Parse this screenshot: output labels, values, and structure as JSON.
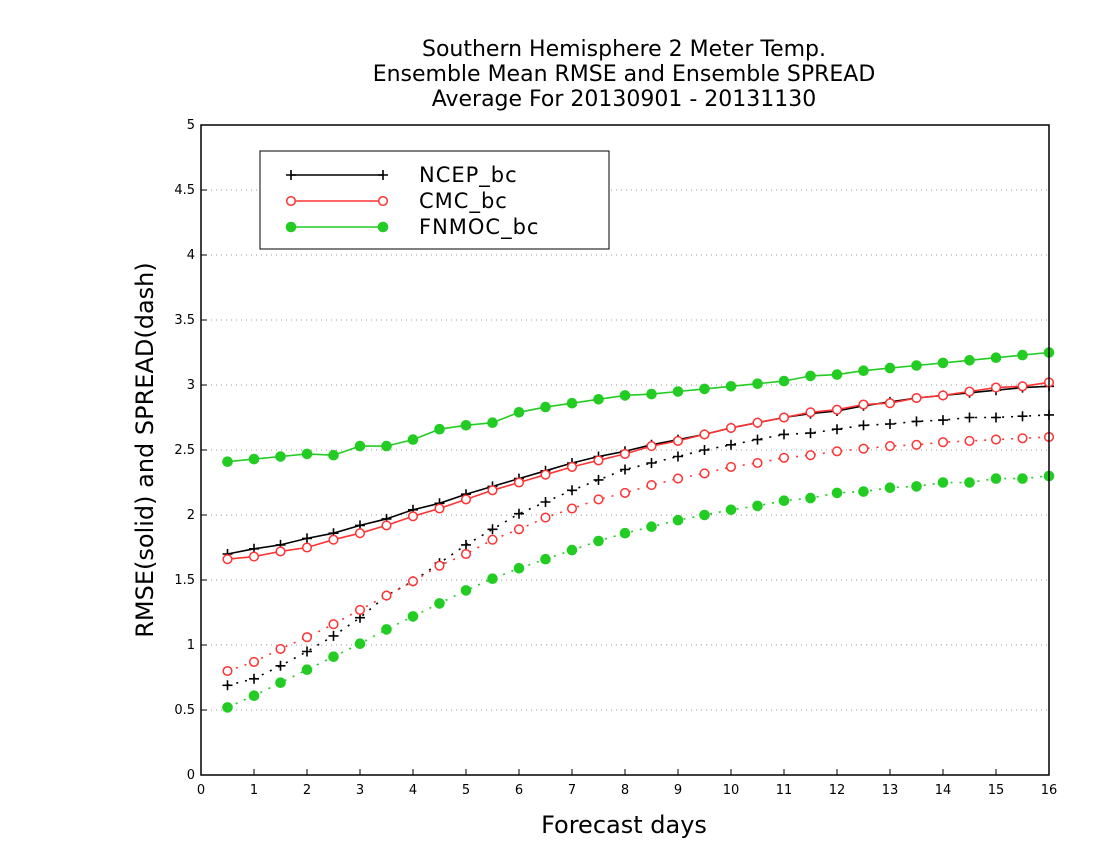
{
  "chart_data": {
    "type": "line",
    "title_lines": [
      "Southern Hemisphere 2 Meter Temp.",
      "Ensemble Mean RMSE and Ensemble SPREAD",
      "Average For 20130901 - 20131130"
    ],
    "xlabel": "Forecast days",
    "ylabel": "RMSE(solid) and SPREAD(dash)",
    "xlim": [
      0,
      16
    ],
    "ylim": [
      0,
      5
    ],
    "x_ticks": [
      "0",
      "1",
      "2",
      "3",
      "4",
      "5",
      "6",
      "7",
      "8",
      "9",
      "10",
      "11",
      "12",
      "13",
      "14",
      "15",
      "16"
    ],
    "y_ticks": [
      "0",
      "0.5",
      "1",
      "1.5",
      "2",
      "2.5",
      "3",
      "3.5",
      "4",
      "4.5",
      "5"
    ],
    "grid": "horizontal dotted",
    "legend_position": "top-left",
    "x": [
      0.5,
      1,
      1.5,
      2,
      2.5,
      3,
      3.5,
      4,
      4.5,
      5,
      5.5,
      6,
      6.5,
      7,
      7.5,
      8,
      8.5,
      9,
      9.5,
      10,
      10.5,
      11,
      11.5,
      12,
      12.5,
      13,
      13.5,
      14,
      14.5,
      15,
      15.5,
      16
    ],
    "series": [
      {
        "name": "NCEP_bc",
        "color": "#000000",
        "marker": "plus",
        "rmse": [
          1.7,
          1.74,
          1.77,
          1.82,
          1.86,
          1.92,
          1.97,
          2.04,
          2.09,
          2.16,
          2.22,
          2.28,
          2.34,
          2.4,
          2.45,
          2.49,
          2.54,
          2.58,
          2.62,
          2.67,
          2.71,
          2.75,
          2.78,
          2.8,
          2.84,
          2.87,
          2.9,
          2.92,
          2.94,
          2.96,
          2.98,
          2.99
        ],
        "spread": [
          0.69,
          0.74,
          0.84,
          0.95,
          1.07,
          1.21,
          1.38,
          1.49,
          1.63,
          1.77,
          1.89,
          2.01,
          2.1,
          2.19,
          2.27,
          2.35,
          2.4,
          2.45,
          2.5,
          2.54,
          2.58,
          2.62,
          2.63,
          2.66,
          2.69,
          2.7,
          2.72,
          2.73,
          2.75,
          2.75,
          2.76,
          2.77
        ]
      },
      {
        "name": "CMC_bc",
        "color": "#ff3333",
        "marker": "open-circle",
        "rmse": [
          1.66,
          1.68,
          1.72,
          1.75,
          1.81,
          1.86,
          1.92,
          1.99,
          2.05,
          2.12,
          2.19,
          2.25,
          2.31,
          2.37,
          2.42,
          2.47,
          2.53,
          2.57,
          2.62,
          2.67,
          2.71,
          2.75,
          2.79,
          2.81,
          2.85,
          2.86,
          2.9,
          2.92,
          2.95,
          2.98,
          2.99,
          3.02
        ],
        "spread": [
          0.8,
          0.87,
          0.97,
          1.06,
          1.16,
          1.27,
          1.38,
          1.49,
          1.61,
          1.7,
          1.81,
          1.89,
          1.98,
          2.05,
          2.12,
          2.17,
          2.23,
          2.28,
          2.32,
          2.37,
          2.4,
          2.44,
          2.46,
          2.49,
          2.51,
          2.53,
          2.54,
          2.56,
          2.57,
          2.58,
          2.59,
          2.6
        ]
      },
      {
        "name": "FNMOC_bc",
        "color": "#22cc22",
        "marker": "filled-circle",
        "rmse": [
          2.41,
          2.43,
          2.45,
          2.47,
          2.46,
          2.53,
          2.53,
          2.58,
          2.66,
          2.69,
          2.71,
          2.79,
          2.83,
          2.86,
          2.89,
          2.92,
          2.93,
          2.95,
          2.97,
          2.99,
          3.01,
          3.03,
          3.07,
          3.08,
          3.11,
          3.13,
          3.15,
          3.17,
          3.19,
          3.21,
          3.23,
          3.25
        ],
        "spread": [
          0.52,
          0.61,
          0.71,
          0.81,
          0.91,
          1.01,
          1.12,
          1.22,
          1.32,
          1.42,
          1.51,
          1.59,
          1.66,
          1.73,
          1.8,
          1.86,
          1.91,
          1.96,
          2.0,
          2.04,
          2.07,
          2.11,
          2.13,
          2.17,
          2.18,
          2.21,
          2.22,
          2.25,
          2.25,
          2.28,
          2.28,
          2.3
        ]
      }
    ]
  }
}
